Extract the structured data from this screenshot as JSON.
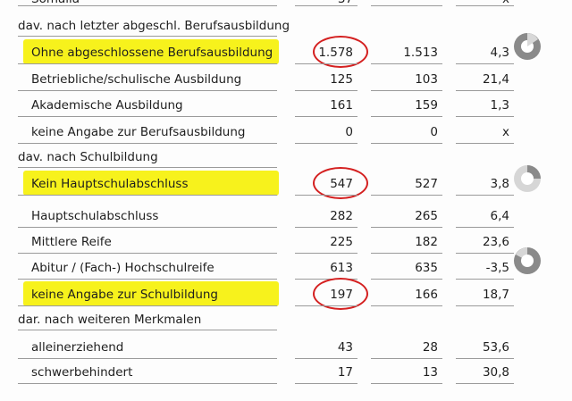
{
  "partial_row": {
    "label": "Somalia",
    "value": "37",
    "change": "x"
  },
  "sections": [
    {
      "title": "dav. nach letzter abgeschl. Berufsausbildung",
      "rows": [
        {
          "label": "Ohne abgeschlossene Berufsausbildung",
          "values": [
            "1.578",
            "1.513",
            "4,3"
          ],
          "highlighted": true
        },
        {
          "label": "Betriebliche/schulische Ausbildung",
          "values": [
            "125",
            "103",
            "21,4"
          ]
        },
        {
          "label": "Akademische Ausbildung",
          "values": [
            "161",
            "159",
            "1,3"
          ]
        },
        {
          "label": "keine Angabe zur Berufsausbildung",
          "values": [
            "0",
            "0",
            "x"
          ]
        }
      ]
    },
    {
      "title": "dav. nach Schulbildung",
      "rows": [
        {
          "label": "Kein Hauptschulabschluss",
          "values": [
            "547",
            "527",
            "3,8"
          ],
          "highlighted": true
        },
        {
          "label": "Hauptschulabschluss",
          "values": [
            "282",
            "265",
            "6,4"
          ]
        },
        {
          "label": "Mittlere Reife",
          "values": [
            "225",
            "182",
            "23,6"
          ]
        },
        {
          "label": "Abitur / (Fach-) Hochschulreife",
          "values": [
            "613",
            "635",
            "-3,5"
          ]
        },
        {
          "label": "keine Angabe zur Schulbildung",
          "values": [
            "197",
            "166",
            "18,7"
          ],
          "highlighted": true
        }
      ]
    },
    {
      "title": "dar. nach weiteren Merkmalen",
      "rows": [
        {
          "label": "alleinerziehend",
          "values": [
            "43",
            "28",
            "53,6"
          ]
        },
        {
          "label": "schwerbehindert",
          "values": [
            "17",
            "13",
            "30,8"
          ]
        }
      ]
    }
  ]
}
